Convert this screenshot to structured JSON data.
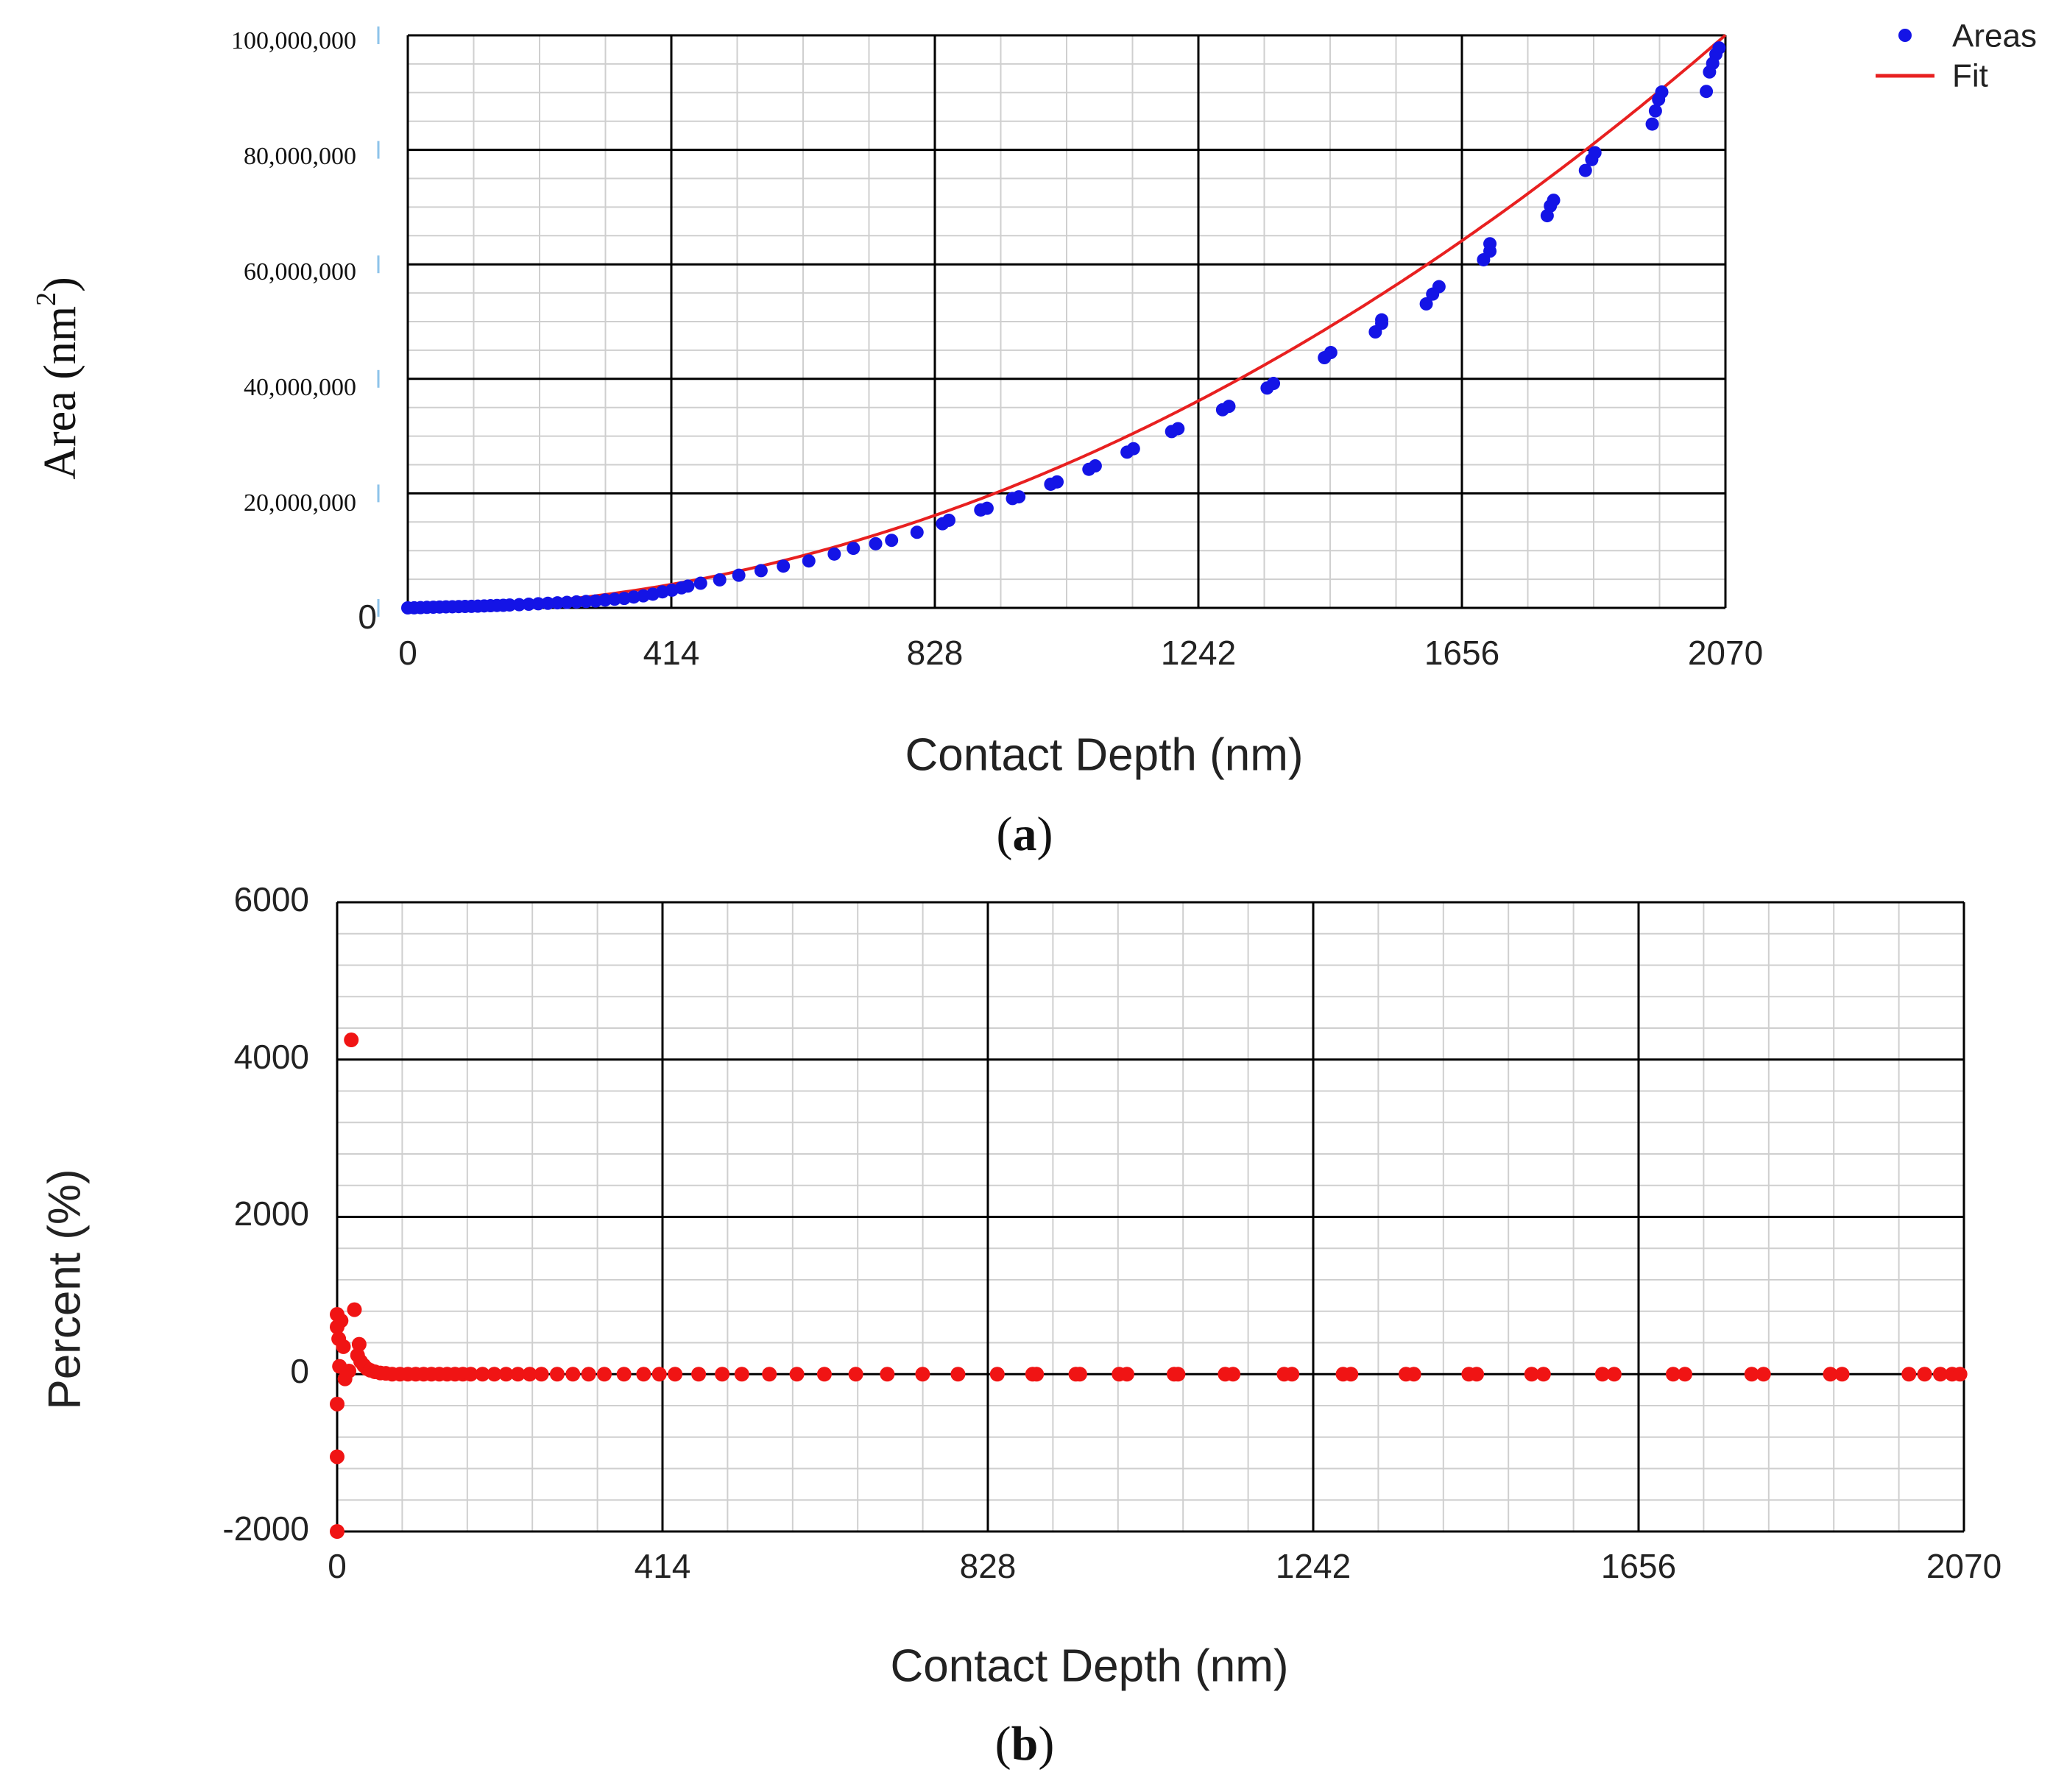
{
  "colors": {
    "areas_marker": "#1414e6",
    "fit_line": "#e82020",
    "percent_marker": "#f01414",
    "major_grid": "#000000",
    "minor_grid": "#cfcfcf"
  },
  "chart_data": [
    {
      "type": "scatter",
      "panel": "a",
      "caption_letter": "a",
      "caption_open": "(",
      "caption_close": ")",
      "xlabel": "Contact Depth (nm)",
      "ylabel_text": "Area (nm",
      "ylabel_sup": "2",
      "ylabel_close": ")",
      "xlim": [
        0,
        2070
      ],
      "ylim": [
        0,
        100000000
      ],
      "x_ticks": [
        "0",
        "414",
        "828",
        "1242",
        "1656",
        "2070"
      ],
      "y_ticks": [
        "0",
        "20,000,000",
        "40,000,000",
        "60,000,000",
        "80,000,000",
        "100,000,000"
      ],
      "grid": true,
      "legend_position": "top-right",
      "legend": [
        "Areas",
        "Fit"
      ],
      "fit_coefficients": {
        "c2": 23.2,
        "c1": 300
      },
      "series": [
        {
          "name": "Areas",
          "kind": "points",
          "points": [
            [
              0,
              0
            ],
            [
              10,
              12000
            ],
            [
              20,
              45000
            ],
            [
              30,
              90000
            ],
            [
              40,
              120000
            ],
            [
              50,
              150000
            ],
            [
              60,
              180000
            ],
            [
              70,
              200000
            ],
            [
              80,
              230000
            ],
            [
              90,
              250000
            ],
            [
              100,
              270000
            ],
            [
              110,
              300000
            ],
            [
              120,
              340000
            ],
            [
              130,
              380000
            ],
            [
              140,
              420000
            ],
            [
              150,
              450000
            ],
            [
              160,
              500000
            ],
            [
              175,
              560000
            ],
            [
              190,
              640000
            ],
            [
              205,
              720000
            ],
            [
              220,
              800000
            ],
            [
              235,
              880000
            ],
            [
              250,
              960000
            ],
            [
              265,
              1040000
            ],
            [
              280,
              1120000
            ],
            [
              295,
              1200000
            ],
            [
              310,
              1380000
            ],
            [
              325,
              1520000
            ],
            [
              340,
              1650000
            ],
            [
              355,
              1900000
            ],
            [
              370,
              2100000
            ],
            [
              385,
              2400000
            ],
            [
              400,
              2800000
            ],
            [
              415,
              3100000
            ],
            [
              430,
              3500000
            ],
            [
              440,
              3800000
            ],
            [
              460,
              4300000
            ],
            [
              490,
              4900000
            ],
            [
              520,
              5700000
            ],
            [
              555,
              6500000
            ],
            [
              590,
              7300000
            ],
            [
              630,
              8200000
            ],
            [
              670,
              9400000
            ],
            [
              700,
              10400000
            ],
            [
              735,
              11200000
            ],
            [
              760,
              11800000
            ],
            [
              800,
              13200000
            ],
            [
              840,
              14700000
            ],
            [
              850,
              15300000
            ],
            [
              900,
              17100000
            ],
            [
              910,
              17400000
            ],
            [
              950,
              19100000
            ],
            [
              960,
              19400000
            ],
            [
              1010,
              21600000
            ],
            [
              1020,
              22000000
            ],
            [
              1070,
              24200000
            ],
            [
              1080,
              24800000
            ],
            [
              1130,
              27200000
            ],
            [
              1140,
              27800000
            ],
            [
              1200,
              30800000
            ],
            [
              1210,
              31300000
            ],
            [
              1280,
              34600000
            ],
            [
              1290,
              35200000
            ],
            [
              1350,
              38400000
            ],
            [
              1360,
              39200000
            ],
            [
              1440,
              43700000
            ],
            [
              1450,
              44600000
            ],
            [
              1520,
              48200000
            ],
            [
              1530,
              49700000
            ],
            [
              1530,
              50300000
            ],
            [
              1600,
              53100000
            ],
            [
              1610,
              54800000
            ],
            [
              1620,
              56100000
            ],
            [
              1690,
              60800000
            ],
            [
              1700,
              62300000
            ],
            [
              1700,
              63600000
            ],
            [
              1790,
              68500000
            ],
            [
              1795,
              70200000
            ],
            [
              1800,
              71200000
            ],
            [
              1850,
              76400000
            ],
            [
              1860,
              78300000
            ],
            [
              1865,
              79500000
            ],
            [
              1955,
              84500000
            ],
            [
              1960,
              86800000
            ],
            [
              1965,
              88800000
            ],
            [
              1970,
              90100000
            ],
            [
              2040,
              90200000
            ],
            [
              2045,
              93600000
            ],
            [
              2050,
              95100000
            ],
            [
              2055,
              96700000
            ],
            [
              2060,
              97800000
            ]
          ]
        },
        {
          "name": "Fit",
          "kind": "line",
          "formula": "c2*x^2 + c1*x"
        }
      ]
    },
    {
      "type": "scatter",
      "panel": "b",
      "caption_letter": "b",
      "caption_open": "(",
      "caption_close": ")",
      "xlabel": "Contact Depth (nm)",
      "ylabel": "Percent (%)",
      "xlim": [
        0,
        2070
      ],
      "ylim": [
        -2000,
        6000
      ],
      "x_ticks": [
        "0",
        "414",
        "828",
        "1242",
        "1656",
        "2070"
      ],
      "y_ticks": [
        "-2000",
        "0",
        "2000",
        "4000",
        "6000"
      ],
      "grid": true,
      "series": [
        {
          "name": "Percent",
          "kind": "points",
          "points": [
            [
              0,
              -2000
            ],
            [
              0,
              -1050
            ],
            [
              0,
              -380
            ],
            [
              0,
              600
            ],
            [
              0,
              760
            ],
            [
              2,
              450
            ],
            [
              3,
              100
            ],
            [
              5,
              680
            ],
            [
              8,
              350
            ],
            [
              10,
              -60
            ],
            [
              15,
              40
            ],
            [
              18,
              4250
            ],
            [
              22,
              820
            ],
            [
              26,
              240
            ],
            [
              28,
              380
            ],
            [
              30,
              160
            ],
            [
              34,
              110
            ],
            [
              38,
              70
            ],
            [
              42,
              50
            ],
            [
              48,
              30
            ],
            [
              55,
              15
            ],
            [
              62,
              10
            ],
            [
              70,
              0
            ],
            [
              80,
              0
            ],
            [
              90,
              0
            ],
            [
              100,
              0
            ],
            [
              110,
              0
            ],
            [
              120,
              0
            ],
            [
              130,
              0
            ],
            [
              140,
              0
            ],
            [
              150,
              0
            ],
            [
              160,
              0
            ],
            [
              170,
              0
            ],
            [
              185,
              0
            ],
            [
              200,
              0
            ],
            [
              215,
              0
            ],
            [
              230,
              0
            ],
            [
              245,
              0
            ],
            [
              260,
              0
            ],
            [
              280,
              0
            ],
            [
              300,
              0
            ],
            [
              320,
              0
            ],
            [
              340,
              0
            ],
            [
              365,
              0
            ],
            [
              390,
              0
            ],
            [
              410,
              0
            ],
            [
              430,
              0
            ],
            [
              460,
              0
            ],
            [
              490,
              0
            ],
            [
              515,
              0
            ],
            [
              550,
              0
            ],
            [
              585,
              0
            ],
            [
              620,
              0
            ],
            [
              660,
              0
            ],
            [
              700,
              0
            ],
            [
              745,
              0
            ],
            [
              790,
              0
            ],
            [
              840,
              0
            ],
            [
              885,
              0
            ],
            [
              890,
              0
            ],
            [
              940,
              0
            ],
            [
              945,
              0
            ],
            [
              995,
              0
            ],
            [
              1005,
              0
            ],
            [
              1065,
              0
            ],
            [
              1070,
              0
            ],
            [
              1130,
              0
            ],
            [
              1140,
              0
            ],
            [
              1205,
              0
            ],
            [
              1215,
              0
            ],
            [
              1280,
              0
            ],
            [
              1290,
              0
            ],
            [
              1360,
              0
            ],
            [
              1370,
              0
            ],
            [
              1440,
              0
            ],
            [
              1450,
              0
            ],
            [
              1520,
              0
            ],
            [
              1535,
              0
            ],
            [
              1610,
              0
            ],
            [
              1625,
              0
            ],
            [
              1700,
              0
            ],
            [
              1715,
              0
            ],
            [
              1800,
              0
            ],
            [
              1815,
              0
            ],
            [
              1900,
              0
            ],
            [
              1915,
              0
            ],
            [
              2000,
              0
            ],
            [
              2020,
              0
            ],
            [
              2040,
              0
            ],
            [
              2055,
              0
            ],
            [
              2065,
              0
            ]
          ]
        }
      ]
    }
  ]
}
